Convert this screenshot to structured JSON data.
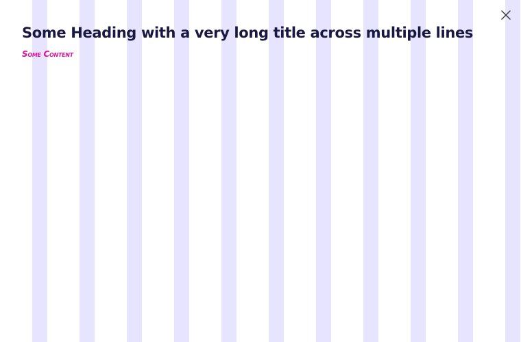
{
  "dialog": {
    "heading": "Some Heading with a very long title across multiple lines",
    "content": "Some Content",
    "close_icon": "close-icon"
  },
  "colors": {
    "stripe": "#e6e4ff",
    "heading": "#181840",
    "accent": "#e0149a",
    "icon": "#3a3a3a"
  }
}
